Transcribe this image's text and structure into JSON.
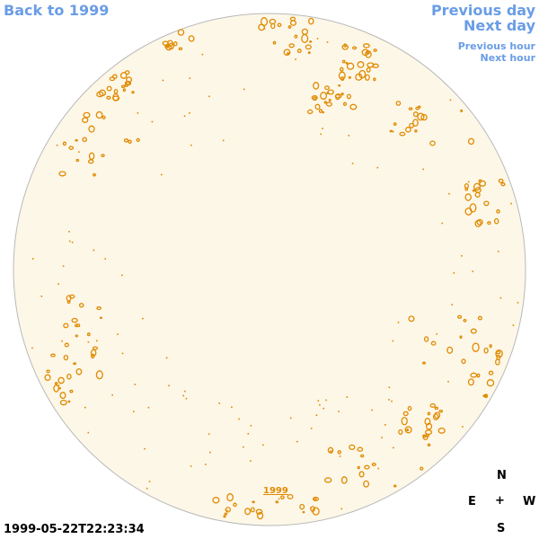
{
  "nav": {
    "back_label": "Back to 1999",
    "prev_day_label": "Previous day",
    "next_day_label": "Next day",
    "prev_hour_label": "Previous hour",
    "next_hour_label": "Next hour"
  },
  "timestamp": "1999-05-22T22:23:34",
  "year_link": "1999",
  "compass": {
    "n": "N",
    "e": "E",
    "center": "+",
    "w": "W",
    "s": "S"
  },
  "colors": {
    "disk_fill": "#fdf7e8",
    "disk_border": "#b9b9b9",
    "contour": "#e08a00",
    "link": "#6a9de6"
  }
}
